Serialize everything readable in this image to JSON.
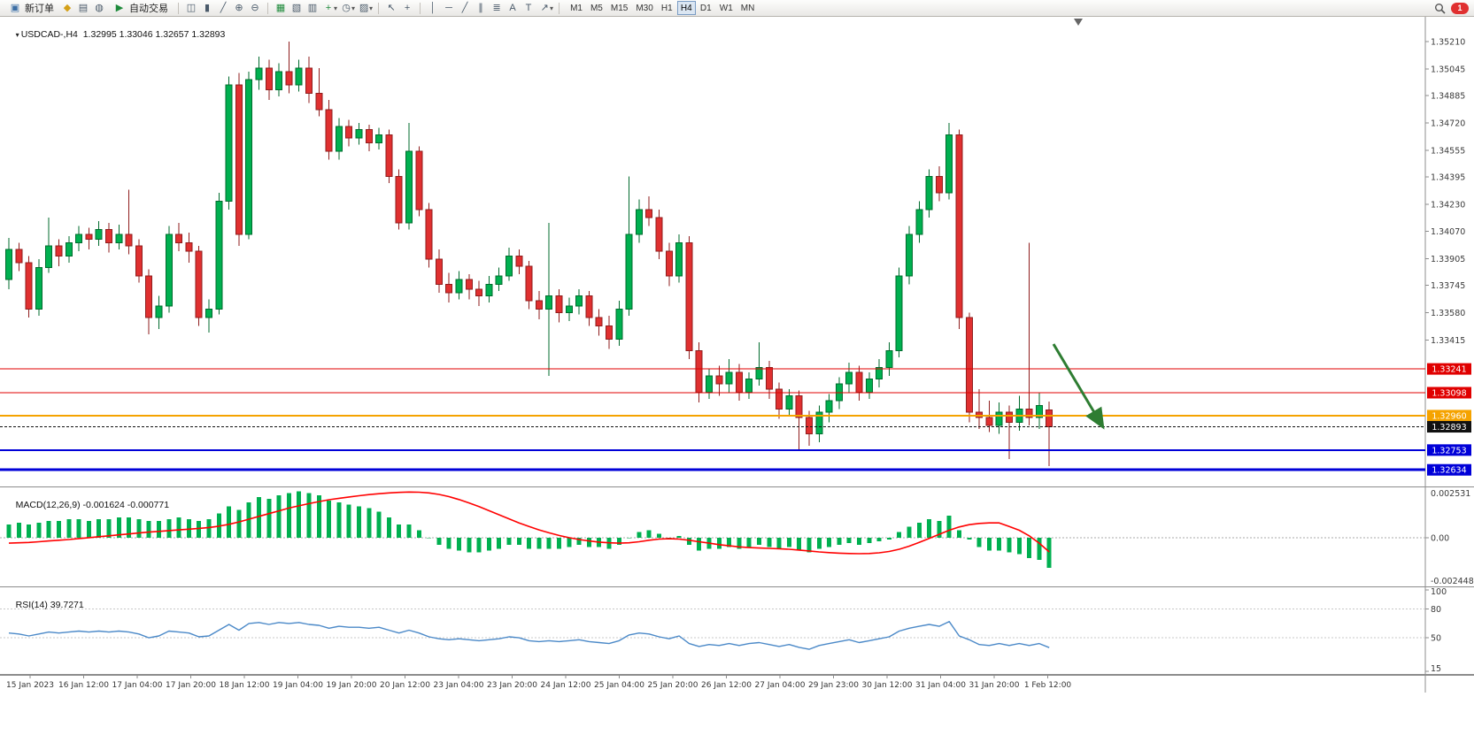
{
  "toolbar": {
    "new_order_label": "新订单",
    "autotrading_label": "自动交易",
    "timeframes": [
      "M1",
      "M5",
      "M15",
      "M30",
      "H1",
      "H4",
      "D1",
      "W1",
      "MN"
    ],
    "active_timeframe": "H4",
    "notification_count": "1"
  },
  "icons": {
    "new_order": "▣",
    "symbols": "◆",
    "print": "▤",
    "news": "◍",
    "autotrading_play": "▶",
    "bar_chart": "◫",
    "candlesticks": "▮",
    "line_chart": "╱",
    "zoom_in": "⊕",
    "zoom_out": "⊖",
    "tile_windows": "▦",
    "new_chart": "▧",
    "profiles": "▥",
    "indicators_add": "+",
    "periods": "◷",
    "templates": "▨",
    "cursor": "↖",
    "crosshair": "+",
    "vertical_line": "│",
    "horizontal_line": "─",
    "trendline": "╱",
    "channel": "∥",
    "fibonacci": "≣",
    "text_tool": "A",
    "label_tool": "T",
    "arrows_tool": "↗",
    "dropdown_caret": "▾",
    "title_marker": "▾",
    "shift_marker": "▼"
  },
  "chart": {
    "title": {
      "symbol_period": "USDCAD-,H4",
      "open": "1.32995",
      "high": "1.33046",
      "low": "1.32657",
      "close": "1.32893"
    },
    "price_scale_labels": [
      "1.35210",
      "1.35045",
      "1.34885",
      "1.34720",
      "1.34555",
      "1.34395",
      "1.34230",
      "1.34070",
      "1.33905",
      "1.33745",
      "1.33580",
      "1.33415"
    ],
    "hlines": [
      {
        "label": "1.33241",
        "value": 1.33241,
        "color": "#e00000",
        "width": 1
      },
      {
        "label": "1.33098",
        "value": 1.33098,
        "color": "#e00000",
        "width": 1
      },
      {
        "label": "1.32960",
        "value": 1.3296,
        "color": "#f5a300",
        "width": 2
      },
      {
        "label": "1.32893",
        "value": 1.32893,
        "color": "#111111",
        "width": 1,
        "dash": "3,2",
        "current": true
      },
      {
        "label": "1.32753",
        "value": 1.32753,
        "color": "#0000d8",
        "width": 2
      },
      {
        "label": "1.32634",
        "value": 1.32634,
        "color": "#0000d8",
        "width": 3
      }
    ],
    "arrow_color": "#2e7d32",
    "up_color": "#00b050",
    "down_color": "#e03030"
  },
  "chart_data": {
    "type": "candlestick",
    "symbol_period": "USDCAD-,H4",
    "price_range": [
      1.3254,
      1.3536
    ],
    "time_labels": [
      "15 Jan 2023",
      "16 Jan 12:00",
      "17 Jan 04:00",
      "17 Jan 20:00",
      "18 Jan 12:00",
      "19 Jan 04:00",
      "19 Jan 20:00",
      "20 Jan 12:00",
      "23 Jan 04:00",
      "23 Jan 20:00",
      "24 Jan 12:00",
      "25 Jan 04:00",
      "25 Jan 20:00",
      "26 Jan 12:00",
      "27 Jan 04:00",
      "29 Jan 23:00",
      "30 Jan 12:00",
      "31 Jan 04:00",
      "31 Jan 20:00",
      "1 Feb 12:00"
    ],
    "ohlc": [
      [
        1.3378,
        1.3403,
        1.3372,
        1.3396
      ],
      [
        1.3396,
        1.34,
        1.3383,
        1.3388
      ],
      [
        1.3388,
        1.3392,
        1.3355,
        1.336
      ],
      [
        1.336,
        1.339,
        1.3356,
        1.3385
      ],
      [
        1.3385,
        1.3415,
        1.3382,
        1.3398
      ],
      [
        1.3398,
        1.3402,
        1.3386,
        1.3392
      ],
      [
        1.3392,
        1.3404,
        1.3388,
        1.34
      ],
      [
        1.34,
        1.341,
        1.3395,
        1.3405
      ],
      [
        1.3405,
        1.3409,
        1.3396,
        1.3402
      ],
      [
        1.3402,
        1.3413,
        1.3398,
        1.3408
      ],
      [
        1.3408,
        1.3412,
        1.3394,
        1.34
      ],
      [
        1.34,
        1.3411,
        1.3396,
        1.3405
      ],
      [
        1.3405,
        1.3432,
        1.3393,
        1.3398
      ],
      [
        1.3398,
        1.3402,
        1.3376,
        1.338
      ],
      [
        1.338,
        1.3384,
        1.3345,
        1.3355
      ],
      [
        1.3355,
        1.3368,
        1.3348,
        1.3362
      ],
      [
        1.3362,
        1.341,
        1.3358,
        1.3405
      ],
      [
        1.3405,
        1.3412,
        1.3395,
        1.34
      ],
      [
        1.34,
        1.3406,
        1.3388,
        1.3395
      ],
      [
        1.3395,
        1.3398,
        1.335,
        1.3355
      ],
      [
        1.3355,
        1.3366,
        1.3346,
        1.336
      ],
      [
        1.336,
        1.343,
        1.3357,
        1.3425
      ],
      [
        1.3425,
        1.35,
        1.342,
        1.3495
      ],
      [
        1.3495,
        1.3502,
        1.3398,
        1.3405
      ],
      [
        1.3405,
        1.3503,
        1.3402,
        1.3498
      ],
      [
        1.3498,
        1.3512,
        1.3492,
        1.3505
      ],
      [
        1.3505,
        1.351,
        1.3486,
        1.3492
      ],
      [
        1.3492,
        1.3508,
        1.3488,
        1.3503
      ],
      [
        1.3503,
        1.3521,
        1.349,
        1.3495
      ],
      [
        1.3495,
        1.351,
        1.3491,
        1.3505
      ],
      [
        1.3505,
        1.3512,
        1.3484,
        1.349
      ],
      [
        1.349,
        1.3505,
        1.3476,
        1.348
      ],
      [
        1.348,
        1.3486,
        1.345,
        1.3455
      ],
      [
        1.3455,
        1.3475,
        1.345,
        1.347
      ],
      [
        1.347,
        1.3474,
        1.3458,
        1.3463
      ],
      [
        1.3463,
        1.3472,
        1.3459,
        1.3468
      ],
      [
        1.3468,
        1.3471,
        1.3455,
        1.346
      ],
      [
        1.346,
        1.3469,
        1.3456,
        1.3465
      ],
      [
        1.3465,
        1.3468,
        1.3436,
        1.344
      ],
      [
        1.344,
        1.3444,
        1.3408,
        1.3412
      ],
      [
        1.3412,
        1.3472,
        1.3408,
        1.3455
      ],
      [
        1.3455,
        1.3458,
        1.3416,
        1.342
      ],
      [
        1.342,
        1.3424,
        1.3385,
        1.339
      ],
      [
        1.339,
        1.3396,
        1.337,
        1.3375
      ],
      [
        1.3375,
        1.3382,
        1.3364,
        1.337
      ],
      [
        1.337,
        1.3383,
        1.3366,
        1.3378
      ],
      [
        1.3378,
        1.3381,
        1.3366,
        1.3372
      ],
      [
        1.3372,
        1.3377,
        1.3362,
        1.3368
      ],
      [
        1.3368,
        1.338,
        1.3364,
        1.3375
      ],
      [
        1.3375,
        1.3385,
        1.3371,
        1.338
      ],
      [
        1.338,
        1.3397,
        1.3377,
        1.3392
      ],
      [
        1.3392,
        1.3396,
        1.3381,
        1.3386
      ],
      [
        1.3386,
        1.3389,
        1.336,
        1.3365
      ],
      [
        1.3365,
        1.3371,
        1.3354,
        1.336
      ],
      [
        1.336,
        1.3412,
        1.332,
        1.3368
      ],
      [
        1.3368,
        1.3372,
        1.3352,
        1.3358
      ],
      [
        1.3358,
        1.3367,
        1.3353,
        1.3362
      ],
      [
        1.3362,
        1.3372,
        1.3357,
        1.3368
      ],
      [
        1.3368,
        1.3371,
        1.335,
        1.3355
      ],
      [
        1.3355,
        1.336,
        1.3344,
        1.335
      ],
      [
        1.335,
        1.3356,
        1.3336,
        1.3342
      ],
      [
        1.3342,
        1.3365,
        1.3338,
        1.336
      ],
      [
        1.336,
        1.344,
        1.3356,
        1.3405
      ],
      [
        1.3405,
        1.3426,
        1.34,
        1.342
      ],
      [
        1.342,
        1.3428,
        1.341,
        1.3415
      ],
      [
        1.3415,
        1.342,
        1.339,
        1.3395
      ],
      [
        1.3395,
        1.34,
        1.3374,
        1.338
      ],
      [
        1.338,
        1.3405,
        1.3376,
        1.34
      ],
      [
        1.34,
        1.3404,
        1.333,
        1.3335
      ],
      [
        1.3335,
        1.334,
        1.3304,
        1.331
      ],
      [
        1.331,
        1.3324,
        1.3306,
        1.332
      ],
      [
        1.332,
        1.3326,
        1.3308,
        1.3315
      ],
      [
        1.3315,
        1.333,
        1.331,
        1.3322
      ],
      [
        1.3322,
        1.3327,
        1.3305,
        1.331
      ],
      [
        1.331,
        1.3322,
        1.3306,
        1.3318
      ],
      [
        1.3318,
        1.334,
        1.3314,
        1.3325
      ],
      [
        1.3325,
        1.3329,
        1.3306,
        1.3312
      ],
      [
        1.3312,
        1.3316,
        1.3294,
        1.33
      ],
      [
        1.33,
        1.3312,
        1.3296,
        1.3308
      ],
      [
        1.3308,
        1.3311,
        1.3275,
        1.3295
      ],
      [
        1.3295,
        1.3299,
        1.3278,
        1.3285
      ],
      [
        1.3285,
        1.3302,
        1.328,
        1.3298
      ],
      [
        1.3298,
        1.3309,
        1.3292,
        1.3305
      ],
      [
        1.3305,
        1.3319,
        1.33,
        1.3315
      ],
      [
        1.3315,
        1.3328,
        1.331,
        1.3322
      ],
      [
        1.3322,
        1.3326,
        1.3305,
        1.331
      ],
      [
        1.331,
        1.3322,
        1.3306,
        1.3318
      ],
      [
        1.3318,
        1.333,
        1.3313,
        1.3325
      ],
      [
        1.3325,
        1.334,
        1.332,
        1.3335
      ],
      [
        1.3335,
        1.3385,
        1.3331,
        1.338
      ],
      [
        1.338,
        1.341,
        1.3375,
        1.3405
      ],
      [
        1.3405,
        1.3425,
        1.34,
        1.342
      ],
      [
        1.342,
        1.3444,
        1.3415,
        1.344
      ],
      [
        1.344,
        1.3446,
        1.3425,
        1.343
      ],
      [
        1.343,
        1.3472,
        1.3426,
        1.3465
      ],
      [
        1.3465,
        1.3468,
        1.3348,
        1.3355
      ],
      [
        1.3355,
        1.3358,
        1.3292,
        1.3298
      ],
      [
        1.3298,
        1.3312,
        1.3288,
        1.3295
      ],
      [
        1.3295,
        1.3305,
        1.3286,
        1.329
      ],
      [
        1.329,
        1.3304,
        1.3285,
        1.3298
      ],
      [
        1.3298,
        1.3302,
        1.327,
        1.3292
      ],
      [
        1.3292,
        1.3308,
        1.3287,
        1.33
      ],
      [
        1.33,
        1.34,
        1.329,
        1.3295
      ],
      [
        1.3295,
        1.331,
        1.3288,
        1.3302
      ],
      [
        1.32995,
        1.33046,
        1.32657,
        1.32893
      ]
    ],
    "indicators": {
      "macd": {
        "label": "MACD(12,26,9)",
        "value_main": "-0.001624",
        "value_signal": "-0.000771",
        "scale_max": "0.002531",
        "scale_zero": "0.00",
        "scale_min": "-0.002448",
        "histogram": [
          0.0007,
          0.0008,
          0.0007,
          0.0008,
          0.0009,
          0.0009,
          0.001,
          0.001,
          0.0009,
          0.001,
          0.001,
          0.0011,
          0.0011,
          0.001,
          0.0009,
          0.0009,
          0.001,
          0.0011,
          0.001,
          0.0009,
          0.001,
          0.0013,
          0.0017,
          0.0015,
          0.0019,
          0.0022,
          0.0021,
          0.0023,
          0.0024,
          0.0025,
          0.0024,
          0.0023,
          0.002,
          0.0019,
          0.0018,
          0.0017,
          0.0016,
          0.0014,
          0.0011,
          0.0007,
          0.0007,
          0.0004,
          0.0,
          -0.0004,
          -0.0006,
          -0.0007,
          -0.0008,
          -0.0008,
          -0.0007,
          -0.0006,
          -0.0004,
          -0.0004,
          -0.0006,
          -0.0006,
          -0.0006,
          -0.0006,
          -0.0005,
          -0.0004,
          -0.0005,
          -0.0005,
          -0.0006,
          -0.0004,
          0.0,
          0.0003,
          0.0004,
          0.0002,
          0.0,
          0.0001,
          -0.0004,
          -0.0007,
          -0.0006,
          -0.0006,
          -0.0005,
          -0.0006,
          -0.0005,
          -0.0004,
          -0.0005,
          -0.0006,
          -0.0005,
          -0.0007,
          -0.0008,
          -0.0006,
          -0.0005,
          -0.0004,
          -0.0003,
          -0.0004,
          -0.0003,
          -0.0002,
          -0.0001,
          0.0003,
          0.0006,
          0.0008,
          0.001,
          0.0009,
          0.0012,
          0.0004,
          -0.0001,
          -0.0005,
          -0.0007,
          -0.0007,
          -0.0008,
          -0.0009,
          -0.0011,
          -0.0012,
          -0.001624
        ],
        "signal": [
          -0.0003,
          -0.00028,
          -0.00026,
          -0.00022,
          -0.00018,
          -0.00014,
          -0.0001,
          -5e-05,
          0.0,
          5e-05,
          0.0001,
          0.00015,
          0.0002,
          0.00025,
          0.0003,
          0.00034,
          0.00038,
          0.00042,
          0.00046,
          0.0005,
          0.00055,
          0.00062,
          0.00072,
          0.00085,
          0.001,
          0.00115,
          0.0013,
          0.00145,
          0.0016,
          0.00172,
          0.00184,
          0.00195,
          0.00205,
          0.00213,
          0.0022,
          0.00227,
          0.00233,
          0.00238,
          0.00242,
          0.00245,
          0.00247,
          0.00246,
          0.00242,
          0.00234,
          0.00222,
          0.00206,
          0.00188,
          0.00168,
          0.00146,
          0.00124,
          0.00102,
          0.0008,
          0.0006,
          0.00042,
          0.00026,
          0.00012,
          0.0,
          -0.0001,
          -0.00018,
          -0.00024,
          -0.00028,
          -0.0003,
          -0.00028,
          -0.00022,
          -0.00014,
          -8e-05,
          -6e-05,
          -8e-05,
          -0.00014,
          -0.00022,
          -0.0003,
          -0.00038,
          -0.00044,
          -0.0005,
          -0.00054,
          -0.00056,
          -0.00058,
          -0.0006,
          -0.00063,
          -0.00067,
          -0.00072,
          -0.00077,
          -0.00081,
          -0.00084,
          -0.00086,
          -0.00087,
          -0.00086,
          -0.00082,
          -0.00075,
          -0.00063,
          -0.00046,
          -0.00026,
          -4e-05,
          0.00018,
          0.0004,
          0.00058,
          0.0007,
          0.00077,
          0.0008,
          0.0008,
          0.0006,
          0.0004,
          0.0001,
          -0.0003,
          -0.000771
        ]
      },
      "rsi": {
        "label": "RSI(14)",
        "value": "39.7271",
        "scale_labels": [
          "100",
          "80",
          "50",
          "15"
        ],
        "scale_values": [
          100,
          80,
          50,
          15
        ],
        "levels": [
          80,
          50
        ],
        "values": [
          55,
          54,
          52,
          54,
          56,
          55,
          56,
          57,
          56,
          57,
          56,
          57,
          56,
          54,
          50,
          52,
          57,
          56,
          55,
          51,
          52,
          58,
          64,
          58,
          65,
          66,
          64,
          66,
          65,
          66,
          64,
          63,
          60,
          62,
          61,
          61,
          60,
          61,
          58,
          55,
          58,
          55,
          51,
          49,
          48,
          49,
          48,
          47,
          48,
          49,
          51,
          50,
          47,
          46,
          47,
          46,
          47,
          48,
          46,
          45,
          44,
          47,
          53,
          55,
          54,
          51,
          49,
          52,
          44,
          41,
          43,
          42,
          44,
          42,
          44,
          45,
          43,
          41,
          43,
          40,
          38,
          42,
          44,
          46,
          48,
          45,
          47,
          49,
          51,
          57,
          60,
          62,
          64,
          62,
          67,
          52,
          48,
          43,
          42,
          44,
          42,
          44,
          42,
          44,
          39.7271
        ]
      }
    }
  }
}
